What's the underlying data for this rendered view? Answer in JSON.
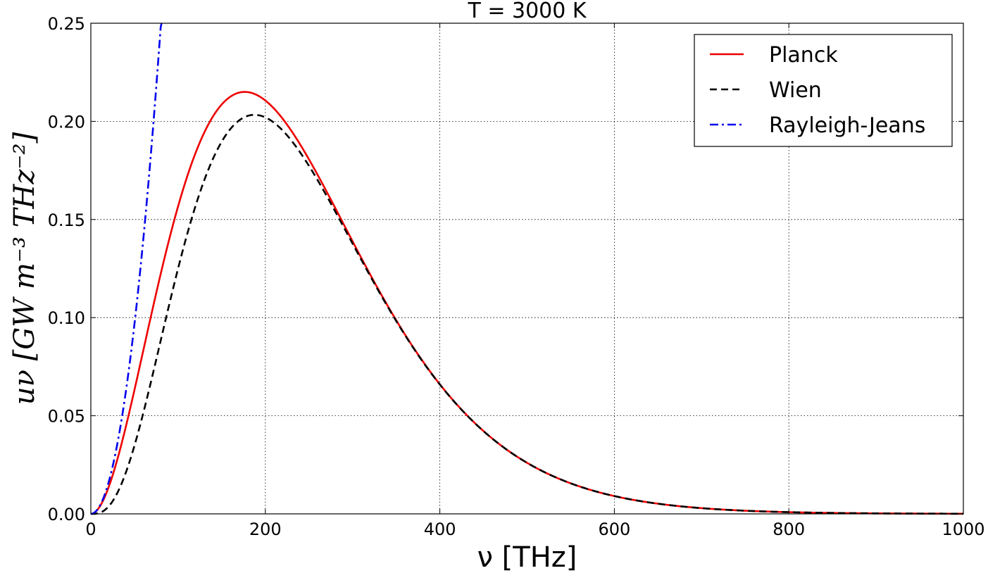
{
  "chart_data": {
    "type": "line",
    "title": "T = 3000 K",
    "xlabel": "ν [THz]",
    "ylabel": "uν [GW m⁻³ THz⁻²]",
    "xlim": [
      0,
      1000
    ],
    "ylim": [
      0,
      0.25
    ],
    "x_ticks": [
      0,
      200,
      400,
      600,
      800,
      1000
    ],
    "x_tick_labels": [
      "0",
      "200",
      "400",
      "600",
      "800",
      "1000"
    ],
    "y_ticks": [
      0,
      0.05,
      0.1,
      0.15,
      0.2,
      0.25
    ],
    "y_tick_labels": [
      "0.00",
      "0.05",
      "0.10",
      "0.15",
      "0.20",
      "0.25"
    ],
    "grid": true,
    "legend_position": "top-right",
    "temperature_K": 3000,
    "series": [
      {
        "name": "Planck",
        "color": "#ee0000",
        "dash": "none",
        "peak_x": 176,
        "peak_y": 0.215
      },
      {
        "name": "Wien",
        "color": "#000000",
        "dash": "dashed",
        "peak_x": 188,
        "peak_y": 0.203
      },
      {
        "name": "Rayleigh-Jeans",
        "color": "#0000ee",
        "dash": "dash-dot"
      }
    ]
  }
}
